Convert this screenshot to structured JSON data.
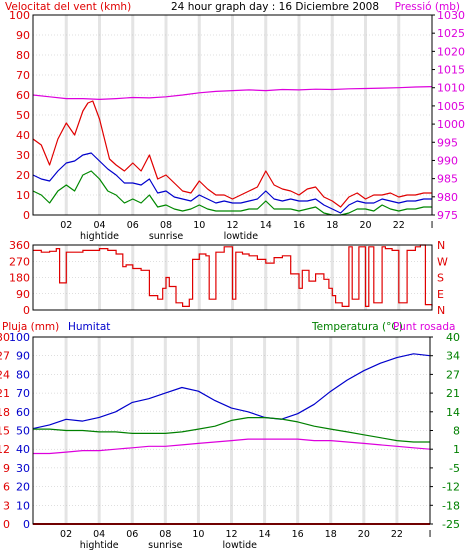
{
  "colors": {
    "background": "#ffffff",
    "frame": "#000000",
    "grid_band": "#e4e4e4",
    "wind": "#e00000",
    "gust_blue": "#0000cc",
    "gust_green": "#008800",
    "pressure": "#dd00dd",
    "humidity": "#0000cc",
    "temperature": "#008000",
    "dewpoint": "#dd00dd",
    "rain": "#e00000",
    "direction": "#e00000"
  },
  "chart_data": [
    {
      "type": "line",
      "title": "24 hour graph day : 16 Diciembre 2008",
      "ylabel_left": "Velocitat del vent (kmh)",
      "ylabel_right": "Pressió (mb)",
      "ylim_left": [
        0,
        100
      ],
      "ylim_right": [
        975,
        1030
      ],
      "yticks_left": [
        "0",
        "10",
        "20",
        "30",
        "40",
        "50",
        "60",
        "70",
        "80",
        "90",
        "100"
      ],
      "yticks_right": [
        "975",
        "980",
        "985",
        "990",
        "995",
        "1000",
        "1005",
        "1010",
        "1015",
        "1020",
        "1025",
        "1030"
      ],
      "x_ticks": [
        "02",
        "04",
        "06",
        "08",
        "10",
        "12",
        "14",
        "16",
        "18",
        "20",
        "22",
        "I"
      ],
      "x_annotations": [
        "hightide",
        "sunrise",
        "lowtide"
      ],
      "grid": true,
      "series": [
        {
          "key": "wind_max",
          "color_key": "wind",
          "axis": "left",
          "x": [
            0,
            0.5,
            1,
            1.5,
            2,
            2.5,
            3,
            3.3,
            3.6,
            4,
            4.3,
            4.6,
            5,
            5.5,
            6,
            6.5,
            7,
            7.5,
            8,
            8.5,
            9,
            9.5,
            10,
            10.5,
            11,
            11.5,
            12,
            12.5,
            13,
            13.5,
            14,
            14.5,
            15,
            15.5,
            16,
            16.5,
            17,
            17.5,
            18,
            18.5,
            19,
            19.5,
            20,
            20.5,
            21,
            21.5,
            22,
            22.5,
            23,
            23.5,
            24
          ],
          "values": [
            38,
            35,
            25,
            38,
            46,
            40,
            52,
            56,
            57,
            48,
            38,
            28,
            25,
            22,
            26,
            22,
            30,
            18,
            20,
            16,
            12,
            11,
            17,
            13,
            10,
            10,
            8,
            10,
            12,
            14,
            22,
            15,
            13,
            12,
            10,
            13,
            14,
            9,
            7,
            4,
            9,
            11,
            8,
            10,
            10,
            11,
            9,
            10,
            10,
            11,
            11
          ]
        },
        {
          "key": "wind_avg",
          "color_key": "gust_blue",
          "axis": "left",
          "x": [
            0,
            0.5,
            1,
            1.5,
            2,
            2.5,
            3,
            3.5,
            4,
            4.5,
            5,
            5.5,
            6,
            6.5,
            7,
            7.5,
            8,
            8.5,
            9,
            9.5,
            10,
            10.5,
            11,
            11.5,
            12,
            12.5,
            13,
            13.5,
            14,
            14.5,
            15,
            15.5,
            16,
            16.5,
            17,
            17.5,
            18,
            18.5,
            19,
            19.5,
            20,
            20.5,
            21,
            21.5,
            22,
            22.5,
            23,
            23.5,
            24
          ],
          "values": [
            20,
            18,
            17,
            22,
            26,
            27,
            30,
            31,
            27,
            23,
            20,
            16,
            16,
            15,
            18,
            11,
            12,
            9,
            8,
            7,
            10,
            8,
            6,
            7,
            6,
            6,
            7,
            8,
            12,
            8,
            7,
            8,
            7,
            7,
            8,
            5,
            3,
            1,
            5,
            7,
            6,
            6,
            8,
            7,
            6,
            7,
            7,
            8,
            8
          ]
        },
        {
          "key": "wind_min",
          "color_key": "gust_green",
          "axis": "left",
          "x": [
            0,
            0.5,
            1,
            1.5,
            2,
            2.5,
            3,
            3.5,
            4,
            4.5,
            5,
            5.5,
            6,
            6.5,
            7,
            7.5,
            8,
            8.5,
            9,
            9.5,
            10,
            10.5,
            11,
            11.5,
            12,
            12.5,
            13,
            13.5,
            14,
            14.5,
            15,
            15.5,
            16,
            16.5,
            17,
            17.5,
            18,
            18.5,
            19,
            19.5,
            20,
            20.5,
            21,
            21.5,
            22,
            22.5,
            23,
            23.5,
            24
          ],
          "values": [
            12,
            10,
            6,
            12,
            15,
            12,
            20,
            22,
            18,
            12,
            10,
            6,
            8,
            6,
            10,
            4,
            5,
            3,
            2,
            3,
            5,
            3,
            2,
            2,
            2,
            2,
            3,
            3,
            7,
            3,
            3,
            3,
            2,
            3,
            4,
            1,
            0,
            0,
            1,
            3,
            3,
            2,
            5,
            3,
            2,
            3,
            3,
            4,
            4
          ]
        },
        {
          "key": "pressure",
          "color_key": "pressure",
          "axis": "right",
          "x": [
            0,
            1,
            2,
            3,
            4,
            5,
            6,
            7,
            8,
            9,
            10,
            11,
            12,
            13,
            14,
            15,
            16,
            17,
            18,
            19,
            20,
            21,
            22,
            23,
            24
          ],
          "values": [
            1008,
            1007.5,
            1007,
            1007,
            1006.8,
            1007,
            1007.3,
            1007.2,
            1007.5,
            1008,
            1008.6,
            1009,
            1009.2,
            1009.4,
            1009.2,
            1009.5,
            1009.4,
            1009.6,
            1009.5,
            1009.7,
            1009.8,
            1009.9,
            1010,
            1010.2,
            1010.3
          ]
        }
      ]
    },
    {
      "type": "line",
      "ylabel_right": [
        "N",
        "W",
        "S",
        "E",
        "N"
      ],
      "yticks_left": [
        "360",
        "270",
        "180",
        "90",
        "0"
      ],
      "ylim": [
        0,
        360
      ],
      "series": [
        {
          "key": "wind_direction",
          "color_key": "direction",
          "x": [
            0,
            0.5,
            1,
            1.4,
            1.6,
            2,
            3,
            4,
            4.5,
            5,
            5.4,
            5.6,
            6,
            6.5,
            7,
            7.5,
            7.8,
            8,
            8.2,
            8.6,
            9,
            9.4,
            9.6,
            10,
            10.4,
            10.6,
            11,
            11.5,
            12,
            12.2,
            12.6,
            13,
            13.5,
            14,
            14.5,
            15,
            15.5,
            16,
            16.2,
            16.6,
            17,
            17.5,
            17.8,
            18,
            18.2,
            18.6,
            19,
            19.2,
            19.6,
            20,
            20.2,
            20.5,
            21,
            21.2,
            21.6,
            22,
            22.5,
            23,
            23.3,
            23.6,
            24
          ],
          "values": [
            330,
            320,
            325,
            340,
            150,
            320,
            330,
            340,
            330,
            310,
            240,
            250,
            230,
            220,
            80,
            60,
            120,
            180,
            130,
            40,
            20,
            60,
            280,
            310,
            300,
            60,
            320,
            350,
            60,
            320,
            310,
            300,
            280,
            260,
            290,
            300,
            200,
            120,
            220,
            160,
            200,
            170,
            120,
            80,
            40,
            20,
            350,
            60,
            350,
            20,
            350,
            40,
            350,
            340,
            330,
            40,
            330,
            350,
            360,
            30,
            20
          ]
        }
      ]
    },
    {
      "type": "line",
      "ylabel_left_1": "Pluja (mm)",
      "ylabel_left_2": "Humitat",
      "ylabel_right": "Temperatura (°C)",
      "ylabel_right_2": "Punt rosada",
      "yticks_rain": [
        "0",
        "3",
        "6",
        "9",
        "12",
        "15",
        "18",
        "21",
        "24",
        "27",
        "30"
      ],
      "yticks_humidity": [
        "0",
        "10",
        "20",
        "30",
        "40",
        "50",
        "60",
        "70",
        "80",
        "90",
        "100"
      ],
      "yticks_temp": [
        "-25",
        "-22",
        "-18",
        "-15",
        "-12",
        "-9",
        "-5",
        "-2",
        "1",
        "4",
        "8",
        "11",
        "14",
        "17",
        "21",
        "24",
        "27",
        "31",
        "34",
        "37",
        "40"
      ],
      "ylim_humidity": [
        0,
        100
      ],
      "ylim_temp": [
        -25,
        40
      ],
      "x_ticks": [
        "02",
        "04",
        "06",
        "08",
        "10",
        "12",
        "14",
        "16",
        "18",
        "20",
        "22",
        "I"
      ],
      "x_annotations": [
        "hightide",
        "sunrise",
        "lowtide"
      ],
      "series": [
        {
          "key": "humidity",
          "color_key": "humidity",
          "axis": "humidity",
          "x": [
            0,
            1,
            2,
            3,
            4,
            5,
            6,
            7,
            8,
            9,
            10,
            11,
            12,
            13,
            14,
            15,
            16,
            17,
            18,
            19,
            20,
            21,
            22,
            23,
            24
          ],
          "values": [
            51,
            53,
            56,
            55,
            57,
            60,
            65,
            67,
            70,
            73,
            71,
            66,
            62,
            60,
            57,
            56,
            59,
            64,
            71,
            77,
            82,
            86,
            89,
            91,
            90
          ]
        },
        {
          "key": "temperature",
          "color_key": "temperature",
          "axis": "temp",
          "x": [
            0,
            1,
            2,
            3,
            4,
            5,
            6,
            7,
            8,
            9,
            10,
            11,
            12,
            13,
            14,
            15,
            16,
            17,
            18,
            19,
            20,
            21,
            22,
            23,
            24
          ],
          "values": [
            8,
            8,
            7.5,
            7.5,
            7,
            7,
            6.5,
            6.5,
            6.5,
            7,
            8,
            9,
            11,
            12,
            12,
            11.5,
            10.5,
            9,
            8,
            7,
            6,
            5,
            4,
            3.5,
            3.5
          ]
        },
        {
          "key": "dewpoint",
          "color_key": "dewpoint",
          "axis": "temp",
          "x": [
            0,
            1,
            2,
            3,
            4,
            5,
            6,
            7,
            8,
            9,
            10,
            11,
            12,
            13,
            14,
            15,
            16,
            17,
            18,
            19,
            20,
            21,
            22,
            23,
            24
          ],
          "values": [
            -0.5,
            -0.5,
            0,
            0.5,
            0.5,
            1,
            1.5,
            2,
            2,
            2.5,
            3,
            3.5,
            4,
            4.5,
            4.5,
            4.5,
            4.5,
            4,
            4,
            3.5,
            3,
            2.5,
            2,
            1.5,
            1
          ]
        },
        {
          "key": "rain",
          "color_key": "rain",
          "axis": "humidity",
          "x": [
            0,
            24
          ],
          "values": [
            0,
            0
          ]
        }
      ]
    }
  ]
}
